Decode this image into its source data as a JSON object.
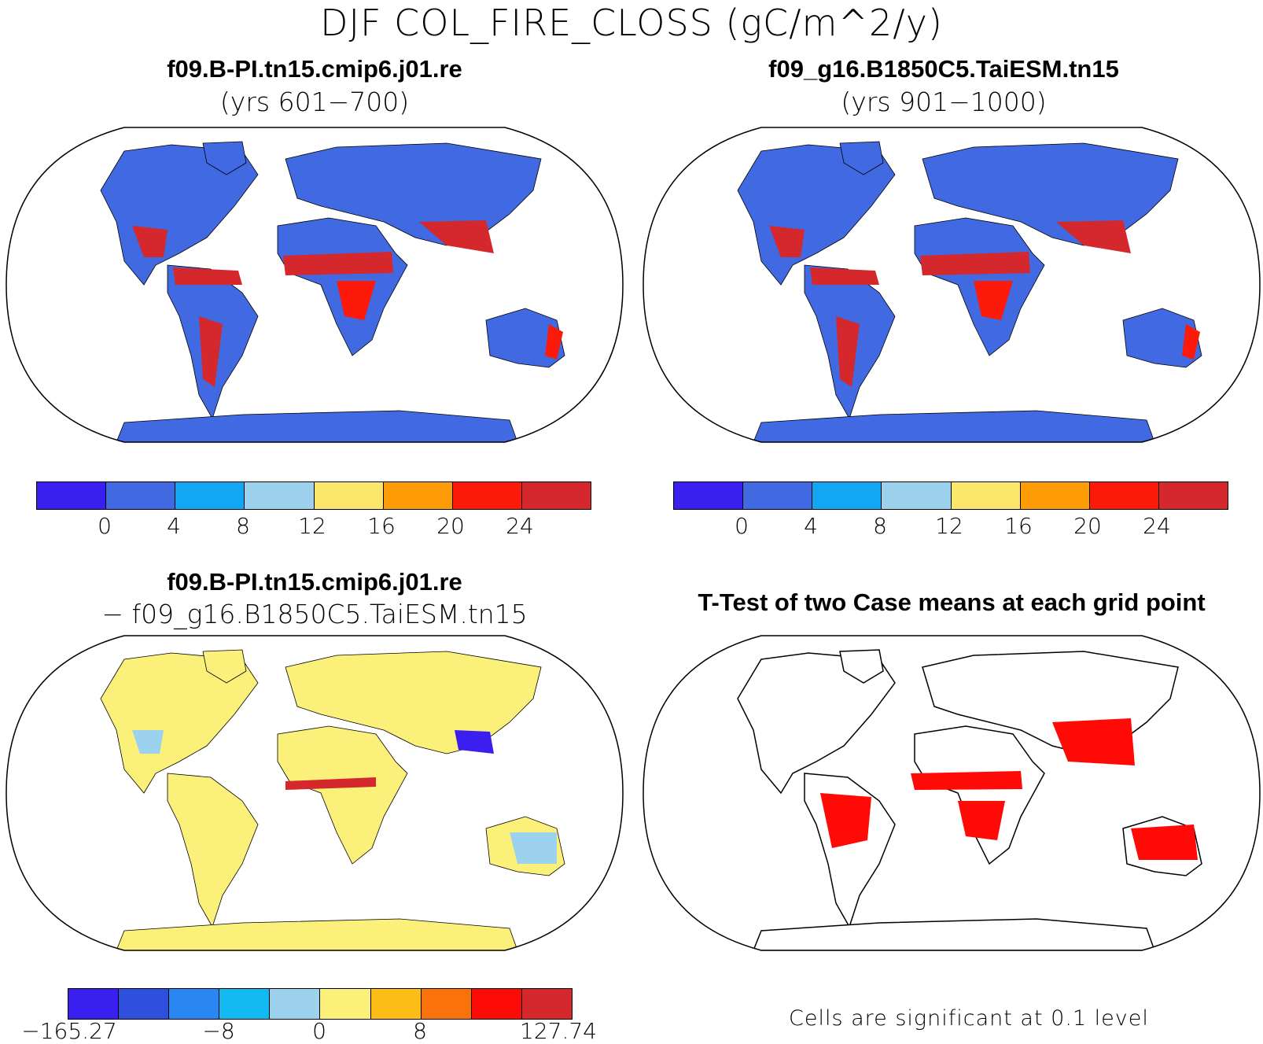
{
  "main_title": "DJF COL_FIRE_CLOSS (gC/m^2/y)",
  "panels": {
    "top_left": {
      "title": "f09.B-PI.tn15.cmip6.j01.re",
      "subtitle": "(yrs 601−700)"
    },
    "top_right": {
      "title": "f09_g16.B1850C5.TaiESM.tn15",
      "subtitle": "(yrs 901−1000)"
    },
    "bottom_left": {
      "title": "f09.B-PI.tn15.cmip6.j01.re",
      "subtitle": "− f09_g16.B1850C5.TaiESM.tn15"
    },
    "bottom_right": {
      "title": "T-Test of two Case means at each grid point",
      "note": "Cells are significant at 0.1 level"
    }
  },
  "colorbar_main": {
    "colors": [
      "#3a1ff0",
      "#4169e1",
      "#13a6f2",
      "#9dd2ee",
      "#fbe76a",
      "#fe9c07",
      "#fe1a0a",
      "#d4282c"
    ],
    "labels": [
      "0",
      "4",
      "8",
      "12",
      "16",
      "20",
      "24"
    ]
  },
  "colorbar_diff": {
    "colors": [
      "#3a1ff0",
      "#2f4fdd",
      "#2a86f2",
      "#13baf2",
      "#9dd2ee",
      "#fbf07a",
      "#fbbd16",
      "#fa720a",
      "#fb0a06",
      "#d4282c"
    ],
    "labels": [
      "−165.27",
      "−8",
      "0",
      "8",
      "127.74"
    ]
  },
  "map_colors": {
    "ocean": "#ffffff",
    "land_base": "#4169e1",
    "fire_high": "#d4282c",
    "fire_mid": "#fe1a0a",
    "fire_low": "#fe9c07",
    "diff_base": "#fbf07a",
    "diff_neg": "#9dd2ee",
    "signif": "#ff0a06",
    "outline": "#000000"
  }
}
